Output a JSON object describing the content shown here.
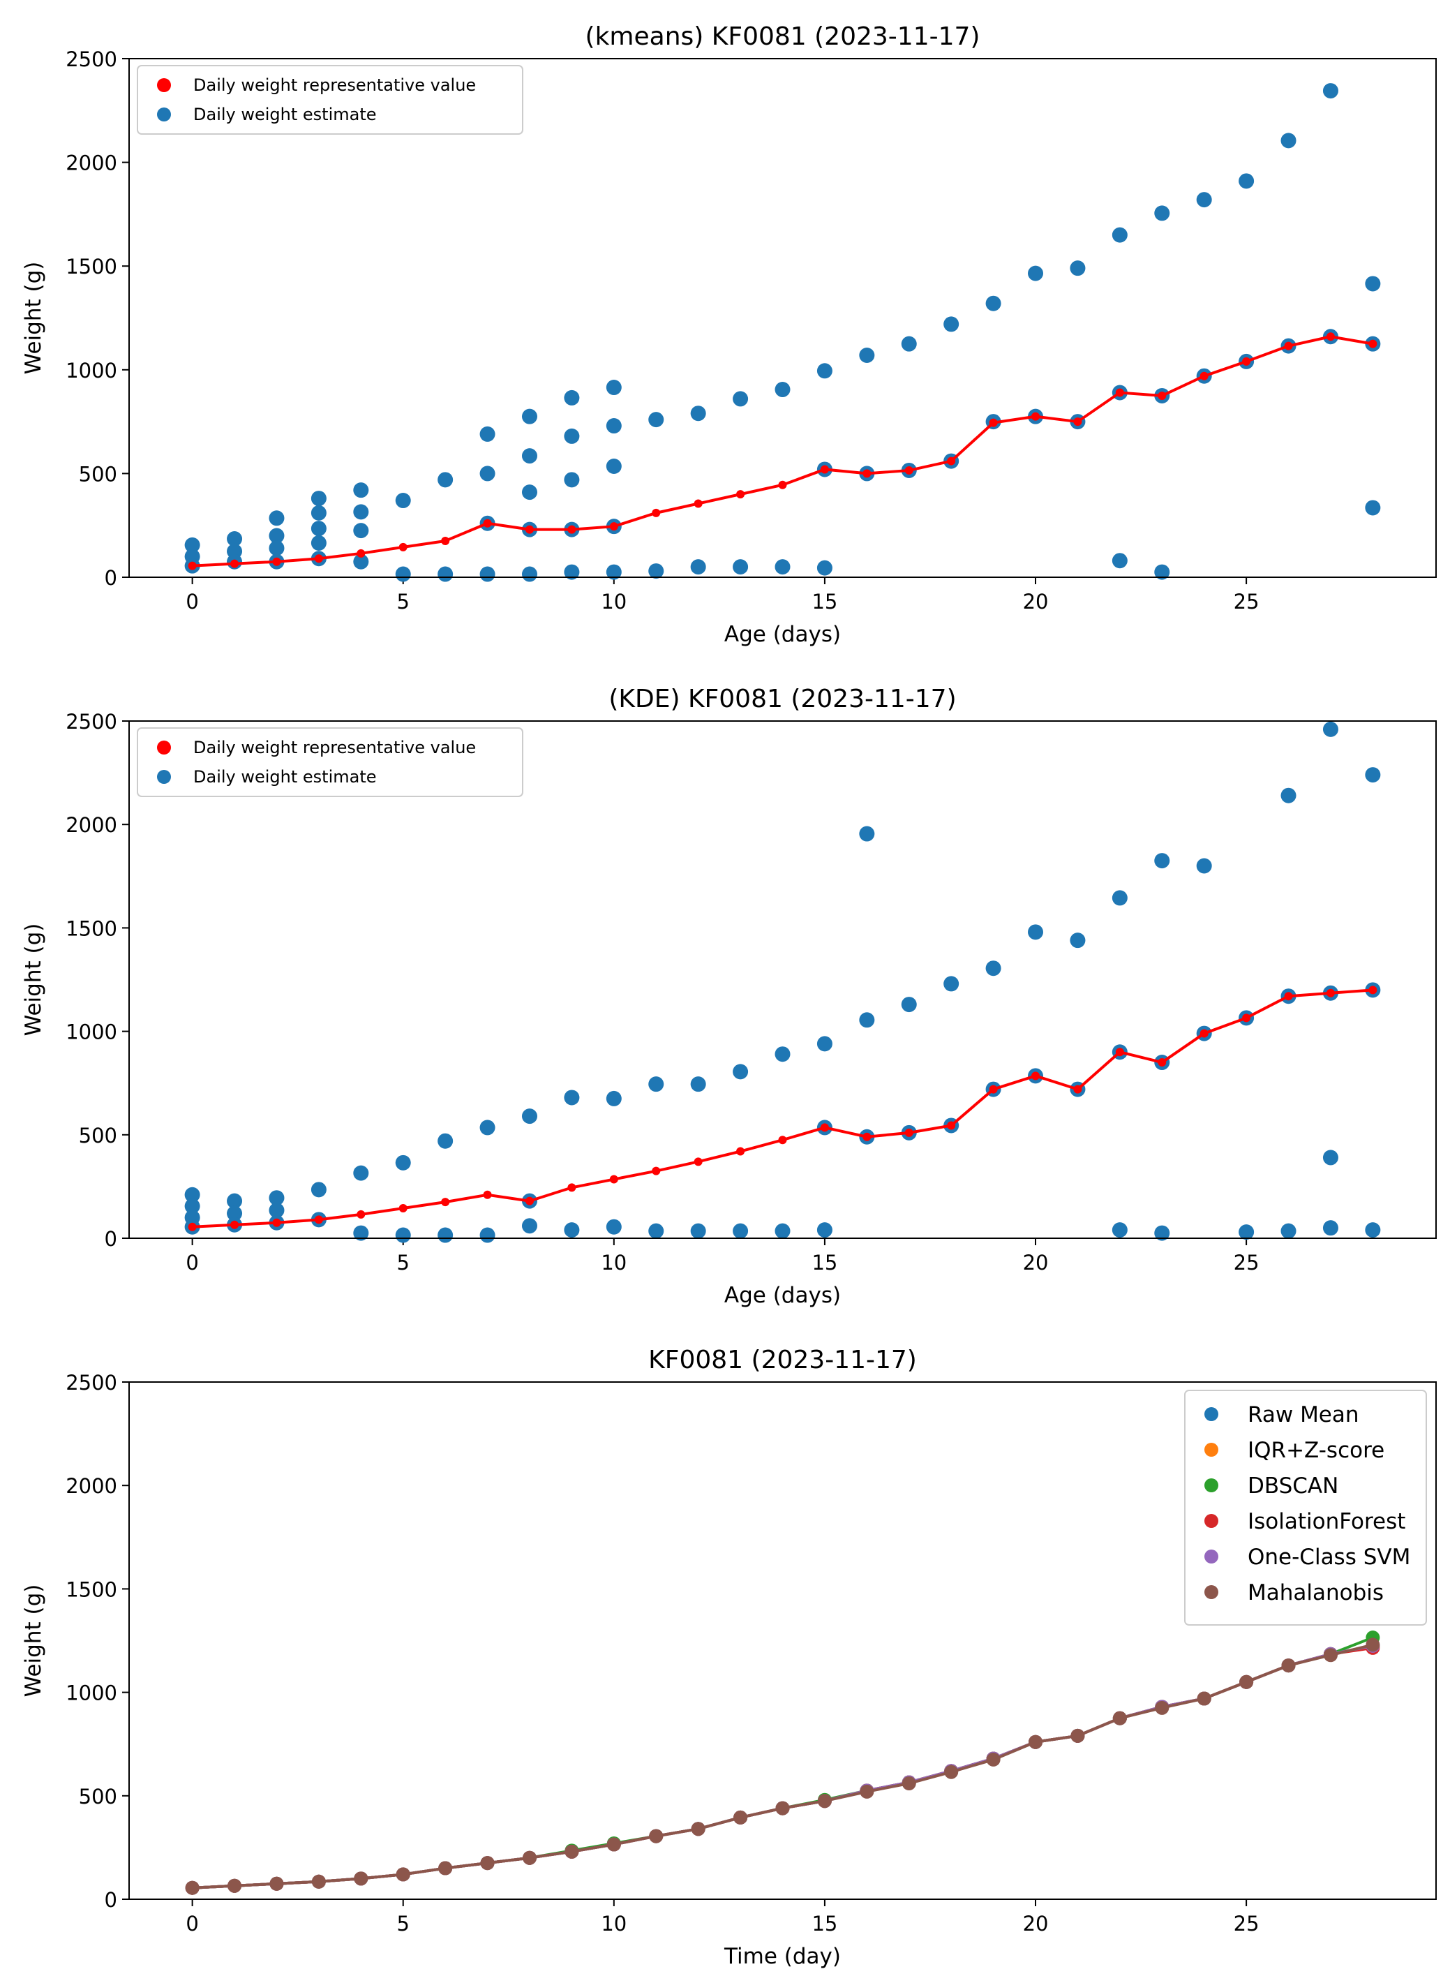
{
  "chart_data": [
    {
      "type": "scatter",
      "title": "(kmeans) KF0081 (2023-11-17)",
      "xlabel": "Age (days)",
      "ylabel": "Weight (g)",
      "xlim": [
        -1.5,
        29.5
      ],
      "ylim": [
        0,
        2500
      ],
      "xticks": [
        0,
        5,
        10,
        15,
        20,
        25
      ],
      "yticks": [
        0,
        500,
        1000,
        1500,
        2000,
        2500
      ],
      "legend": {
        "location": "upper-left",
        "entries": [
          {
            "label": "Daily weight representative value",
            "color": "#ff0000"
          },
          {
            "label": "Daily weight estimate",
            "color": "#1f77b4"
          }
        ]
      },
      "estimates": [
        [
          0,
          155
        ],
        [
          0,
          100
        ],
        [
          0,
          55
        ],
        [
          1,
          185
        ],
        [
          1,
          125
        ],
        [
          1,
          75
        ],
        [
          2,
          285
        ],
        [
          2,
          200
        ],
        [
          2,
          140
        ],
        [
          2,
          75
        ],
        [
          3,
          380
        ],
        [
          3,
          310
        ],
        [
          3,
          235
        ],
        [
          3,
          165
        ],
        [
          3,
          90
        ],
        [
          4,
          420
        ],
        [
          4,
          315
        ],
        [
          4,
          225
        ],
        [
          4,
          75
        ],
        [
          5,
          370
        ],
        [
          5,
          15
        ],
        [
          6,
          470
        ],
        [
          6,
          15
        ],
        [
          7,
          690
        ],
        [
          7,
          500
        ],
        [
          7,
          260
        ],
        [
          7,
          15
        ],
        [
          8,
          775
        ],
        [
          8,
          585
        ],
        [
          8,
          410
        ],
        [
          8,
          230
        ],
        [
          8,
          15
        ],
        [
          9,
          865
        ],
        [
          9,
          680
        ],
        [
          9,
          470
        ],
        [
          9,
          230
        ],
        [
          9,
          25
        ],
        [
          10,
          915
        ],
        [
          10,
          730
        ],
        [
          10,
          535
        ],
        [
          10,
          245
        ],
        [
          10,
          25
        ],
        [
          11,
          760
        ],
        [
          11,
          30
        ],
        [
          12,
          790
        ],
        [
          12,
          50
        ],
        [
          13,
          860
        ],
        [
          13,
          50
        ],
        [
          14,
          905
        ],
        [
          14,
          50
        ],
        [
          15,
          995
        ],
        [
          15,
          520
        ],
        [
          15,
          45
        ],
        [
          16,
          1070
        ],
        [
          16,
          500
        ],
        [
          17,
          1125
        ],
        [
          17,
          515
        ],
        [
          18,
          1220
        ],
        [
          18,
          560
        ],
        [
          19,
          1320
        ],
        [
          19,
          750
        ],
        [
          20,
          1465
        ],
        [
          20,
          775
        ],
        [
          21,
          1490
        ],
        [
          21,
          750
        ],
        [
          22,
          1650
        ],
        [
          22,
          890
        ],
        [
          22,
          80
        ],
        [
          23,
          1755
        ],
        [
          23,
          875
        ],
        [
          23,
          25
        ],
        [
          24,
          1820
        ],
        [
          24,
          970
        ],
        [
          25,
          1910
        ],
        [
          25,
          1040
        ],
        [
          26,
          2105
        ],
        [
          26,
          1115
        ],
        [
          27,
          2345
        ],
        [
          27,
          1160
        ],
        [
          28,
          1415
        ],
        [
          28,
          1125
        ],
        [
          28,
          335
        ]
      ],
      "representative": [
        [
          0,
          55
        ],
        [
          1,
          65
        ],
        [
          2,
          75
        ],
        [
          3,
          90
        ],
        [
          4,
          115
        ],
        [
          5,
          145
        ],
        [
          6,
          175
        ],
        [
          7,
          260
        ],
        [
          8,
          230
        ],
        [
          9,
          230
        ],
        [
          10,
          245
        ],
        [
          11,
          310
        ],
        [
          12,
          355
        ],
        [
          13,
          400
        ],
        [
          14,
          445
        ],
        [
          15,
          520
        ],
        [
          16,
          500
        ],
        [
          17,
          515
        ],
        [
          18,
          560
        ],
        [
          19,
          745
        ],
        [
          20,
          775
        ],
        [
          21,
          750
        ],
        [
          22,
          890
        ],
        [
          23,
          875
        ],
        [
          24,
          970
        ],
        [
          25,
          1040
        ],
        [
          26,
          1115
        ],
        [
          27,
          1160
        ],
        [
          28,
          1125
        ]
      ]
    },
    {
      "type": "scatter",
      "title": "(KDE) KF0081 (2023-11-17)",
      "xlabel": "Age (days)",
      "ylabel": "Weight (g)",
      "xlim": [
        -1.5,
        29.5
      ],
      "ylim": [
        0,
        2500
      ],
      "xticks": [
        0,
        5,
        10,
        15,
        20,
        25
      ],
      "yticks": [
        0,
        500,
        1000,
        1500,
        2000,
        2500
      ],
      "legend": {
        "location": "upper-left",
        "entries": [
          {
            "label": "Daily weight representative value",
            "color": "#ff0000"
          },
          {
            "label": "Daily weight estimate",
            "color": "#1f77b4"
          }
        ]
      },
      "estimates": [
        [
          0,
          210
        ],
        [
          0,
          155
        ],
        [
          0,
          100
        ],
        [
          0,
          55
        ],
        [
          1,
          180
        ],
        [
          1,
          120
        ],
        [
          1,
          65
        ],
        [
          2,
          195
        ],
        [
          2,
          135
        ],
        [
          2,
          75
        ],
        [
          3,
          235
        ],
        [
          3,
          90
        ],
        [
          4,
          315
        ],
        [
          4,
          25
        ],
        [
          5,
          365
        ],
        [
          5,
          15
        ],
        [
          6,
          470
        ],
        [
          6,
          15
        ],
        [
          7,
          535
        ],
        [
          7,
          15
        ],
        [
          8,
          590
        ],
        [
          8,
          180
        ],
        [
          8,
          60
        ],
        [
          9,
          680
        ],
        [
          9,
          40
        ],
        [
          10,
          675
        ],
        [
          10,
          55
        ],
        [
          11,
          745
        ],
        [
          11,
          35
        ],
        [
          12,
          745
        ],
        [
          12,
          35
        ],
        [
          13,
          805
        ],
        [
          13,
          35
        ],
        [
          14,
          890
        ],
        [
          14,
          35
        ],
        [
          15,
          940
        ],
        [
          15,
          535
        ],
        [
          15,
          40
        ],
        [
          16,
          1955
        ],
        [
          16,
          1055
        ],
        [
          16,
          490
        ],
        [
          17,
          1130
        ],
        [
          17,
          510
        ],
        [
          18,
          1230
        ],
        [
          18,
          545
        ],
        [
          19,
          1305
        ],
        [
          19,
          720
        ],
        [
          20,
          1480
        ],
        [
          20,
          785
        ],
        [
          21,
          1440
        ],
        [
          21,
          720
        ],
        [
          22,
          1645
        ],
        [
          22,
          900
        ],
        [
          22,
          40
        ],
        [
          23,
          1825
        ],
        [
          23,
          850
        ],
        [
          23,
          25
        ],
        [
          24,
          1800
        ],
        [
          24,
          990
        ],
        [
          25,
          1065
        ],
        [
          25,
          30
        ],
        [
          26,
          2140
        ],
        [
          26,
          1170
        ],
        [
          26,
          35
        ],
        [
          27,
          2460
        ],
        [
          27,
          1185
        ],
        [
          27,
          390
        ],
        [
          27,
          50
        ],
        [
          28,
          2240
        ],
        [
          28,
          1200
        ],
        [
          28,
          40
        ]
      ],
      "representative": [
        [
          0,
          55
        ],
        [
          1,
          65
        ],
        [
          2,
          75
        ],
        [
          3,
          90
        ],
        [
          4,
          115
        ],
        [
          5,
          145
        ],
        [
          6,
          175
        ],
        [
          7,
          210
        ],
        [
          8,
          180
        ],
        [
          9,
          245
        ],
        [
          10,
          285
        ],
        [
          11,
          325
        ],
        [
          12,
          370
        ],
        [
          13,
          420
        ],
        [
          14,
          475
        ],
        [
          15,
          535
        ],
        [
          16,
          490
        ],
        [
          17,
          510
        ],
        [
          18,
          545
        ],
        [
          19,
          720
        ],
        [
          20,
          785
        ],
        [
          21,
          720
        ],
        [
          22,
          900
        ],
        [
          23,
          850
        ],
        [
          24,
          990
        ],
        [
          25,
          1065
        ],
        [
          26,
          1170
        ],
        [
          27,
          1185
        ],
        [
          28,
          1200
        ]
      ]
    },
    {
      "type": "line",
      "title": "KF0081 (2023-11-17)",
      "xlabel": "Time (day)",
      "ylabel": "Weight (g)",
      "xlim": [
        -1.5,
        29.5
      ],
      "ylim": [
        0,
        2500
      ],
      "xticks": [
        0,
        5,
        10,
        15,
        20,
        25
      ],
      "yticks": [
        0,
        500,
        1000,
        1500,
        2000,
        2500
      ],
      "legend": {
        "location": "upper-right"
      },
      "x": [
        0,
        1,
        2,
        3,
        4,
        5,
        6,
        7,
        8,
        9,
        10,
        11,
        12,
        13,
        14,
        15,
        16,
        17,
        18,
        19,
        20,
        21,
        22,
        23,
        24,
        25,
        26,
        27,
        28
      ],
      "series": [
        {
          "name": "Raw Mean",
          "color": "#1f77b4",
          "values": [
            55,
            65,
            75,
            85,
            100,
            120,
            150,
            175,
            200,
            230,
            265,
            305,
            340,
            395,
            440,
            475,
            525,
            565,
            620,
            680,
            760,
            790,
            875,
            930,
            970,
            1050,
            1130,
            1185,
            1225
          ]
        },
        {
          "name": "IQR+Z-score",
          "color": "#ff7f0e",
          "values": [
            55,
            65,
            75,
            85,
            100,
            120,
            150,
            175,
            200,
            230,
            265,
            305,
            340,
            395,
            440,
            475,
            525,
            565,
            620,
            680,
            760,
            790,
            875,
            930,
            970,
            1050,
            1130,
            1185,
            1220
          ]
        },
        {
          "name": "DBSCAN",
          "color": "#2ca02c",
          "values": [
            55,
            65,
            75,
            85,
            100,
            120,
            150,
            175,
            200,
            235,
            270,
            305,
            340,
            395,
            440,
            480,
            525,
            565,
            620,
            680,
            760,
            790,
            875,
            930,
            970,
            1050,
            1130,
            1185,
            1265
          ]
        },
        {
          "name": "IsolationForest",
          "color": "#d62728",
          "values": [
            55,
            65,
            75,
            85,
            100,
            120,
            150,
            175,
            200,
            230,
            265,
            305,
            340,
            395,
            440,
            475,
            525,
            565,
            620,
            680,
            760,
            790,
            875,
            930,
            970,
            1050,
            1130,
            1185,
            1215
          ]
        },
        {
          "name": "One-Class SVM",
          "color": "#9467bd",
          "values": [
            55,
            65,
            75,
            85,
            100,
            120,
            150,
            175,
            200,
            230,
            265,
            305,
            340,
            395,
            440,
            475,
            525,
            565,
            620,
            680,
            760,
            790,
            875,
            930,
            970,
            1050,
            1130,
            1185,
            1225
          ]
        },
        {
          "name": "Mahalanobis",
          "color": "#8c564b",
          "values": [
            55,
            65,
            75,
            85,
            100,
            120,
            150,
            175,
            200,
            230,
            265,
            305,
            340,
            395,
            440,
            475,
            520,
            560,
            615,
            675,
            760,
            790,
            875,
            925,
            970,
            1050,
            1130,
            1180,
            1230
          ]
        }
      ]
    }
  ]
}
